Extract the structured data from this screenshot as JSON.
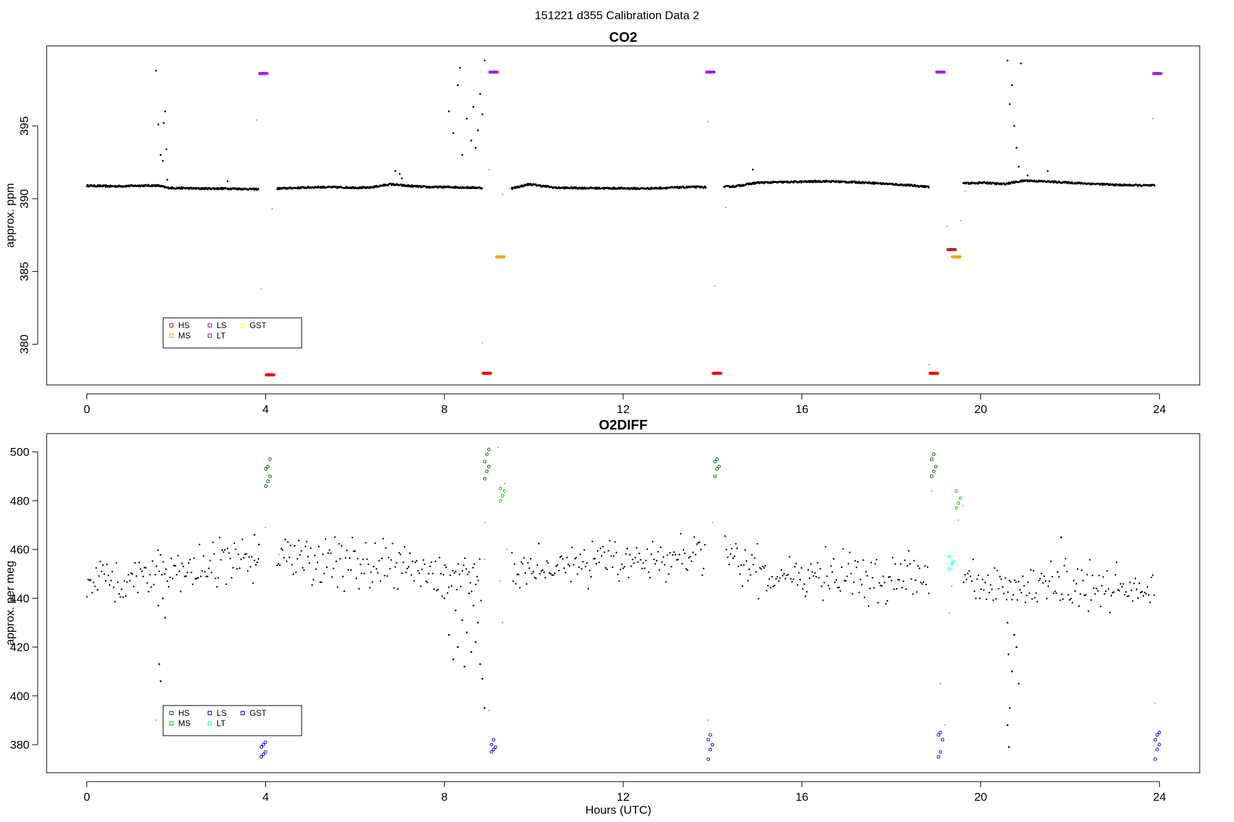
{
  "figure": {
    "title": "151221   d355   Calibration Data 2",
    "xlabel": "Hours (UTC)"
  },
  "colors": {
    "data": "#000000",
    "flagged": "#aaaaaa",
    "HS_co2": "#ff0000",
    "MS_co2": "#ffa500",
    "LS_co2": "#a020f0",
    "LT_co2": "#a52a2a",
    "GST_co2": "#ffff00",
    "HS_o2": "#006400",
    "MS_o2": "#00cc00",
    "LS_o2": "#0000ff",
    "LT_o2": "#00ffff",
    "GST_o2": "#0000ff"
  },
  "chart_data": [
    {
      "type": "scatter",
      "title": "CO2",
      "xlabel": "",
      "ylabel": "approx. ppm",
      "xlim": [
        -0.9,
        24.9
      ],
      "ylim": [
        377.2,
        400.5
      ],
      "xticks": [
        0,
        4,
        8,
        12,
        16,
        20,
        24
      ],
      "yticks": [
        380,
        385,
        390,
        395
      ],
      "legend": {
        "placement": "bottom-left",
        "entries": [
          {
            "label": "HS",
            "color": "#ff0000"
          },
          {
            "label": "MS",
            "color": "#ffa500"
          },
          {
            "label": "LS",
            "color": "#a020f0"
          },
          {
            "label": "LT",
            "color": "#a52a2a"
          },
          {
            "label": "GST",
            "color": "#ffff00"
          }
        ]
      },
      "baseline": [
        [
          0,
          390.9
        ],
        [
          0.6,
          390.85
        ],
        [
          1.2,
          390.9
        ],
        [
          1.6,
          390.9
        ],
        [
          1.8,
          390.75
        ],
        [
          2.5,
          390.7
        ],
        [
          3.2,
          390.7
        ],
        [
          3.8,
          390.65
        ],
        [
          4.3,
          390.7
        ],
        [
          5.2,
          390.8
        ],
        [
          6.3,
          390.75
        ],
        [
          6.8,
          391.0
        ],
        [
          7.1,
          390.9
        ],
        [
          7.6,
          390.8
        ],
        [
          8.1,
          390.8
        ],
        [
          9.5,
          390.7
        ],
        [
          9.9,
          391.0
        ],
        [
          10.5,
          390.75
        ],
        [
          12.5,
          390.7
        ],
        [
          13.5,
          390.8
        ],
        [
          14.1,
          390.8
        ],
        [
          14.5,
          390.85
        ],
        [
          15.0,
          391.1
        ],
        [
          16.5,
          391.2
        ],
        [
          17.5,
          391.1
        ],
        [
          18.5,
          390.9
        ],
        [
          18.9,
          390.8
        ],
        [
          19.6,
          391.05
        ],
        [
          20.1,
          391.1
        ],
        [
          20.5,
          391.0
        ],
        [
          21.0,
          391.25
        ],
        [
          22.0,
          391.1
        ],
        [
          23.0,
          390.95
        ],
        [
          23.9,
          390.9
        ]
      ],
      "scatter": [
        [
          1.55,
          398.8
        ],
        [
          1.6,
          395.1
        ],
        [
          1.65,
          393.0
        ],
        [
          1.7,
          392.6
        ],
        [
          1.72,
          395.2
        ],
        [
          1.75,
          396.0
        ],
        [
          1.78,
          393.4
        ],
        [
          1.8,
          391.3
        ],
        [
          3.15,
          391.2
        ],
        [
          6.9,
          391.9
        ],
        [
          7.0,
          391.7
        ],
        [
          7.05,
          391.4
        ],
        [
          8.1,
          396.0
        ],
        [
          8.2,
          394.5
        ],
        [
          8.3,
          397.8
        ],
        [
          8.35,
          399.0
        ],
        [
          8.4,
          393.0
        ],
        [
          8.5,
          395.5
        ],
        [
          8.6,
          394.0
        ],
        [
          8.65,
          396.3
        ],
        [
          8.7,
          393.5
        ],
        [
          8.75,
          394.7
        ],
        [
          8.8,
          397.2
        ],
        [
          8.85,
          395.8
        ],
        [
          8.9,
          399.5
        ],
        [
          14.9,
          392.0
        ],
        [
          20.6,
          399.5
        ],
        [
          20.65,
          396.5
        ],
        [
          20.7,
          397.8
        ],
        [
          20.75,
          395.0
        ],
        [
          20.8,
          393.5
        ],
        [
          20.85,
          392.2
        ],
        [
          20.9,
          399.3
        ],
        [
          21.05,
          391.6
        ],
        [
          21.5,
          391.9
        ]
      ],
      "flagged": [
        [
          3.8,
          395.4
        ],
        [
          3.9,
          383.8
        ],
        [
          4.15,
          389.3
        ],
        [
          8.85,
          380.1
        ],
        [
          9.0,
          392.0
        ],
        [
          9.3,
          390.3
        ],
        [
          9.45,
          390.7
        ],
        [
          13.9,
          395.3
        ],
        [
          14.05,
          384.0
        ],
        [
          14.3,
          389.4
        ],
        [
          18.85,
          378.6
        ],
        [
          19.25,
          388.1
        ],
        [
          19.55,
          388.5
        ],
        [
          19.65,
          390.5
        ],
        [
          19.7,
          391.0
        ],
        [
          23.85,
          395.5
        ]
      ],
      "cal": [
        {
          "label": "LS",
          "color": "#a020f0",
          "x": 3.95,
          "y": 398.6
        },
        {
          "label": "HS",
          "color": "#ff0000",
          "x": 4.1,
          "y": 377.9
        },
        {
          "label": "HS",
          "color": "#ff0000",
          "x": 8.95,
          "y": 378.0
        },
        {
          "label": "LS",
          "color": "#a020f0",
          "x": 9.1,
          "y": 398.7
        },
        {
          "label": "MS",
          "color": "#ffa500",
          "x": 9.25,
          "y": 386.0
        },
        {
          "label": "LS",
          "color": "#a020f0",
          "x": 13.95,
          "y": 398.7
        },
        {
          "label": "HS",
          "color": "#ff0000",
          "x": 14.1,
          "y": 378.0
        },
        {
          "label": "HS",
          "color": "#ff0000",
          "x": 18.95,
          "y": 378.0
        },
        {
          "label": "LS",
          "color": "#a020f0",
          "x": 19.1,
          "y": 398.7
        },
        {
          "label": "LT",
          "color": "#a52a2a",
          "x": 19.35,
          "y": 386.5
        },
        {
          "label": "MS",
          "color": "#ffa500",
          "x": 19.45,
          "y": 386.0
        },
        {
          "label": "LS",
          "color": "#a020f0",
          "x": 23.95,
          "y": 398.6
        }
      ]
    },
    {
      "type": "scatter",
      "title": "O2DIFF",
      "xlabel": "Hours (UTC)",
      "ylabel": "approx. per meg",
      "xlim": [
        -0.9,
        24.9
      ],
      "ylim": [
        368.5,
        507.5
      ],
      "xticks": [
        0,
        4,
        8,
        12,
        16,
        20,
        24
      ],
      "yticks": [
        380,
        400,
        420,
        440,
        460,
        480,
        500
      ],
      "legend": {
        "placement": "bottom-left",
        "entries": [
          {
            "label": "HS",
            "color": "#006400"
          },
          {
            "label": "MS",
            "color": "#00cc00"
          },
          {
            "label": "LS",
            "color": "#0000ff"
          },
          {
            "label": "LT",
            "color": "#00ffff"
          },
          {
            "label": "GST",
            "color": "#0000ff"
          }
        ]
      },
      "trend": [
        [
          0,
          448
        ],
        [
          1.5,
          450
        ],
        [
          2.0,
          451
        ],
        [
          3.0,
          453
        ],
        [
          3.7,
          455
        ],
        [
          4.4,
          456
        ],
        [
          5.5,
          455
        ],
        [
          6.5,
          453
        ],
        [
          7.5,
          452
        ],
        [
          7.9,
          449
        ],
        [
          9.5,
          452
        ],
        [
          10.5,
          453
        ],
        [
          11.5,
          455
        ],
        [
          12.5,
          456
        ],
        [
          13.5,
          456
        ],
        [
          14.3,
          455
        ],
        [
          15,
          451
        ],
        [
          16,
          450
        ],
        [
          17,
          450
        ],
        [
          17.8,
          447
        ],
        [
          18.5,
          450
        ],
        [
          19.6,
          447
        ],
        [
          20.1,
          444
        ],
        [
          20.5,
          443
        ],
        [
          20.9,
          444
        ],
        [
          21.5,
          446
        ],
        [
          22,
          444
        ],
        [
          23,
          443
        ],
        [
          23.9,
          441
        ]
      ],
      "scatter": [
        [
          1.6,
          437
        ],
        [
          1.62,
          413
        ],
        [
          1.65,
          406
        ],
        [
          1.7,
          440
        ],
        [
          1.75,
          432
        ],
        [
          3.75,
          466
        ],
        [
          3.85,
          462
        ],
        [
          8.0,
          440
        ],
        [
          8.1,
          425
        ],
        [
          8.2,
          415
        ],
        [
          8.25,
          435
        ],
        [
          8.3,
          420
        ],
        [
          8.4,
          431
        ],
        [
          8.45,
          412
        ],
        [
          8.5,
          426
        ],
        [
          8.55,
          442
        ],
        [
          8.6,
          418
        ],
        [
          8.65,
          437
        ],
        [
          8.7,
          422
        ],
        [
          8.75,
          430
        ],
        [
          8.8,
          413
        ],
        [
          8.85,
          407
        ],
        [
          8.9,
          395
        ],
        [
          20.6,
          430
        ],
        [
          20.62,
          417
        ],
        [
          20.65,
          395
        ],
        [
          20.7,
          410
        ],
        [
          20.75,
          425
        ],
        [
          20.8,
          420
        ],
        [
          20.85,
          405
        ],
        [
          20.6,
          388
        ],
        [
          20.63,
          379
        ],
        [
          21.8,
          465
        ]
      ],
      "flagged": [
        [
          1.55,
          390
        ],
        [
          4.0,
          469
        ],
        [
          4.3,
          458
        ],
        [
          8.9,
          456
        ],
        [
          8.9,
          471
        ],
        [
          9.0,
          394
        ],
        [
          9.2,
          502
        ],
        [
          9.25,
          447
        ],
        [
          9.3,
          430
        ],
        [
          9.35,
          487
        ],
        [
          9.4,
          460
        ],
        [
          13.9,
          390
        ],
        [
          14.0,
          471
        ],
        [
          14.3,
          465
        ],
        [
          14.4,
          462
        ],
        [
          18.9,
          484
        ],
        [
          19.1,
          405
        ],
        [
          19.2,
          388
        ],
        [
          19.3,
          434
        ],
        [
          19.35,
          445
        ],
        [
          19.5,
          472
        ],
        [
          19.6,
          478
        ],
        [
          19.65,
          449
        ],
        [
          23.9,
          397
        ]
      ],
      "cal": [
        {
          "label": "HS",
          "color": "#006400",
          "x": 4.05,
          "y": 492,
          "ys": [
            486,
            488,
            490,
            493,
            494,
            497
          ]
        },
        {
          "label": "LS",
          "color": "#0000ff",
          "x": 3.95,
          "y": 378,
          "ys": [
            375,
            376,
            377,
            379,
            380,
            381
          ]
        },
        {
          "label": "HS",
          "color": "#006400",
          "x": 8.95,
          "y": 496,
          "ys": [
            489,
            492,
            494,
            496,
            499,
            501
          ]
        },
        {
          "label": "LS",
          "color": "#0000ff",
          "x": 9.1,
          "y": 379,
          "ys": [
            377,
            378,
            379,
            380,
            382
          ]
        },
        {
          "label": "MS",
          "color": "#00cc00",
          "x": 9.3,
          "y": 482,
          "ys": [
            480,
            482,
            484,
            485
          ]
        },
        {
          "label": "LS",
          "color": "#0000ff",
          "x": 13.95,
          "y": 379,
          "ys": [
            374,
            378,
            380,
            382,
            384
          ]
        },
        {
          "label": "HS",
          "color": "#006400",
          "x": 14.1,
          "y": 494,
          "ys": [
            490,
            493,
            494,
            496,
            497
          ]
        },
        {
          "label": "HS",
          "color": "#006400",
          "x": 18.95,
          "y": 494,
          "ys": [
            490,
            492,
            494,
            497,
            499
          ]
        },
        {
          "label": "LS",
          "color": "#0000ff",
          "x": 19.1,
          "y": 380,
          "ys": [
            375,
            377,
            382,
            384,
            385
          ]
        },
        {
          "label": "LT",
          "color": "#00ffff",
          "x": 19.35,
          "y": 454,
          "ys": [
            452,
            454,
            455,
            457
          ]
        },
        {
          "label": "MS",
          "color": "#00cc00",
          "x": 19.5,
          "y": 481,
          "ys": [
            477,
            479,
            481,
            484
          ]
        },
        {
          "label": "LS",
          "color": "#0000ff",
          "x": 23.95,
          "y": 380,
          "ys": [
            374,
            378,
            380,
            382,
            384,
            385
          ]
        }
      ]
    }
  ]
}
